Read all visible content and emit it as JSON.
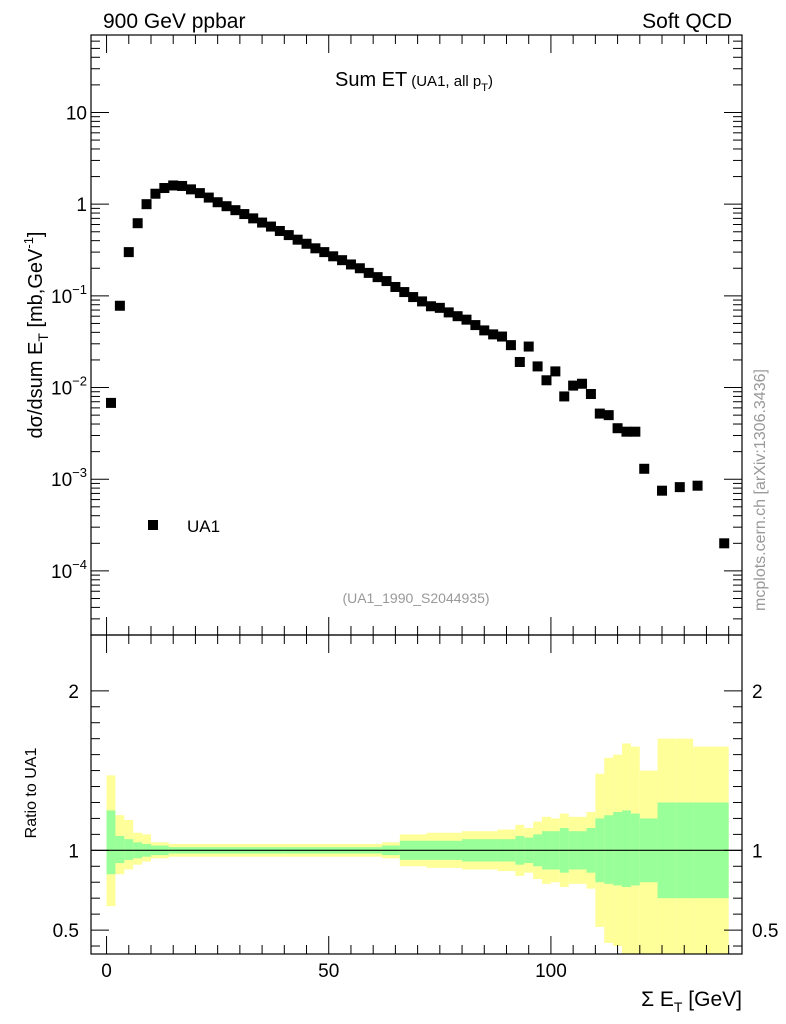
{
  "header": {
    "left": "900 GeV ppbar",
    "right": "Soft QCD",
    "side": "mcplots.cern.ch [arXiv:1306.3436]"
  },
  "chart_data": [
    {
      "type": "scatter",
      "title": "Sum ET",
      "title_sub": "(UA1, all p",
      "title_sub_sub": "T",
      "title_sub_close": ")",
      "reference": "(UA1_1990_S2044935)",
      "ylabel": {
        "prefix": "dσ/dsum E",
        "prefix_sub": "T",
        "mid": " [mb,GeV",
        "sup": "-1",
        "close": "]"
      },
      "yscale": "log",
      "xlim": [
        -3.5,
        143
      ],
      "ylim": [
        2e-05,
        70
      ],
      "yticks": [
        {
          "value": 10,
          "base": "10",
          "exp": ""
        },
        {
          "value": 1,
          "base": "1",
          "exp": ""
        },
        {
          "value": 0.1,
          "base": "10",
          "exp": "−1"
        },
        {
          "value": 0.01,
          "base": "10",
          "exp": "−2"
        },
        {
          "value": 0.001,
          "base": "10",
          "exp": "−3"
        },
        {
          "value": 0.0001,
          "base": "10",
          "exp": "−4"
        }
      ],
      "legend": {
        "label": "UA1",
        "placement": "bottom-left"
      },
      "series": [
        {
          "name": "UA1",
          "color": "#000000",
          "x": [
            1,
            3,
            5,
            7,
            9,
            11,
            13,
            15,
            17,
            19,
            21,
            23,
            25,
            27,
            29,
            31,
            33,
            35,
            37,
            39,
            41,
            43,
            45,
            47,
            49,
            51,
            53,
            55,
            57,
            59,
            61,
            63,
            65,
            67,
            69,
            71,
            73,
            75,
            77,
            79,
            81,
            83,
            85,
            87,
            89,
            91,
            93,
            95,
            97,
            99,
            101,
            103,
            105,
            107,
            109,
            111,
            113,
            115,
            117,
            119,
            121,
            125,
            129,
            133,
            139
          ],
          "y": [
            0.0068,
            0.078,
            0.3,
            0.62,
            1.0,
            1.3,
            1.5,
            1.6,
            1.58,
            1.45,
            1.32,
            1.18,
            1.05,
            0.95,
            0.86,
            0.78,
            0.7,
            0.63,
            0.57,
            0.51,
            0.46,
            0.41,
            0.37,
            0.33,
            0.3,
            0.27,
            0.245,
            0.22,
            0.2,
            0.178,
            0.16,
            0.145,
            0.125,
            0.11,
            0.097,
            0.087,
            0.077,
            0.074,
            0.066,
            0.06,
            0.055,
            0.048,
            0.042,
            0.038,
            0.036,
            0.029,
            0.019,
            0.028,
            0.017,
            0.012,
            0.015,
            0.008,
            0.0105,
            0.011,
            0.0085,
            0.0052,
            0.005,
            0.0036,
            0.0033,
            0.0033,
            0.0013,
            0.00075,
            0.00082,
            0.00085,
            0.0002
          ],
          "marker": "square"
        }
      ]
    },
    {
      "type": "area",
      "ylabel": "Ratio to UA1",
      "xlabel": {
        "prefix": "Σ E",
        "sub": "T",
        "suffix": " [GeV]"
      },
      "xlim": [
        -3.5,
        143
      ],
      "ylim": [
        0.35,
        2.35
      ],
      "xticks": [
        0,
        50,
        100
      ],
      "yticks": [
        0.5,
        1,
        2
      ],
      "yticklabels": [
        "0.5",
        "1",
        "2"
      ],
      "reference_line": 1,
      "band_colors": {
        "outer": "#ffff99",
        "inner": "#99ff99"
      },
      "bins": [
        {
          "x": [
            0,
            2
          ],
          "outer": [
            0.65,
            1.47
          ],
          "inner": [
            0.85,
            1.25
          ]
        },
        {
          "x": [
            2,
            4
          ],
          "outer": [
            0.85,
            1.22
          ],
          "inner": [
            0.92,
            1.09
          ]
        },
        {
          "x": [
            4,
            6
          ],
          "outer": [
            0.88,
            1.19
          ],
          "inner": [
            0.94,
            1.07
          ]
        },
        {
          "x": [
            6,
            8
          ],
          "outer": [
            0.91,
            1.11
          ],
          "inner": [
            0.95,
            1.05
          ]
        },
        {
          "x": [
            8,
            10
          ],
          "outer": [
            0.93,
            1.1
          ],
          "inner": [
            0.96,
            1.04
          ]
        },
        {
          "x": [
            10,
            14
          ],
          "outer": [
            0.95,
            1.05
          ],
          "inner": [
            0.97,
            1.03
          ]
        },
        {
          "x": [
            14,
            40
          ],
          "outer": [
            0.96,
            1.04
          ],
          "inner": [
            0.98,
            1.02
          ]
        },
        {
          "x": [
            40,
            62
          ],
          "outer": [
            0.96,
            1.04
          ],
          "inner": [
            0.98,
            1.02
          ]
        },
        {
          "x": [
            62,
            66
          ],
          "outer": [
            0.95,
            1.05
          ],
          "inner": [
            0.97,
            1.03
          ]
        },
        {
          "x": [
            66,
            72
          ],
          "outer": [
            0.9,
            1.1
          ],
          "inner": [
            0.94,
            1.06
          ]
        },
        {
          "x": [
            72,
            80
          ],
          "outer": [
            0.89,
            1.11
          ],
          "inner": [
            0.94,
            1.06
          ]
        },
        {
          "x": [
            80,
            88
          ],
          "outer": [
            0.88,
            1.12
          ],
          "inner": [
            0.93,
            1.07
          ]
        },
        {
          "x": [
            88,
            92
          ],
          "outer": [
            0.87,
            1.13
          ],
          "inner": [
            0.93,
            1.07
          ]
        },
        {
          "x": [
            92,
            94
          ],
          "outer": [
            0.84,
            1.16
          ],
          "inner": [
            0.91,
            1.09
          ]
        },
        {
          "x": [
            94,
            96
          ],
          "outer": [
            0.86,
            1.14
          ],
          "inner": [
            0.92,
            1.08
          ]
        },
        {
          "x": [
            96,
            98
          ],
          "outer": [
            0.82,
            1.18
          ],
          "inner": [
            0.9,
            1.1
          ]
        },
        {
          "x": [
            98,
            100
          ],
          "outer": [
            0.79,
            1.21
          ],
          "inner": [
            0.88,
            1.12
          ]
        },
        {
          "x": [
            100,
            102
          ],
          "outer": [
            0.8,
            1.2
          ],
          "inner": [
            0.88,
            1.12
          ]
        },
        {
          "x": [
            102,
            104
          ],
          "outer": [
            0.77,
            1.23
          ],
          "inner": [
            0.86,
            1.14
          ]
        },
        {
          "x": [
            104,
            106
          ],
          "outer": [
            0.79,
            1.21
          ],
          "inner": [
            0.88,
            1.12
          ]
        },
        {
          "x": [
            106,
            108
          ],
          "outer": [
            0.79,
            1.21
          ],
          "inner": [
            0.88,
            1.12
          ]
        },
        {
          "x": [
            108,
            110
          ],
          "outer": [
            0.76,
            1.24
          ],
          "inner": [
            0.86,
            1.14
          ]
        },
        {
          "x": [
            110,
            112
          ],
          "outer": [
            0.52,
            1.48
          ],
          "inner": [
            0.8,
            1.2
          ]
        },
        {
          "x": [
            112,
            114
          ],
          "outer": [
            0.42,
            1.58
          ],
          "inner": [
            0.79,
            1.22
          ]
        },
        {
          "x": [
            114,
            116
          ],
          "outer": [
            0.4,
            1.6
          ],
          "inner": [
            0.78,
            1.24
          ]
        },
        {
          "x": [
            116,
            118
          ],
          "outer": [
            0.33,
            1.67
          ],
          "inner": [
            0.77,
            1.25
          ]
        },
        {
          "x": [
            118,
            120
          ],
          "outer": [
            0.35,
            1.65
          ],
          "inner": [
            0.78,
            1.23
          ]
        },
        {
          "x": [
            120,
            124
          ],
          "outer": [
            0.35,
            1.5
          ],
          "inner": [
            0.8,
            1.2
          ]
        },
        {
          "x": [
            124,
            128
          ],
          "outer": [
            0.3,
            1.7
          ],
          "inner": [
            0.7,
            1.3
          ]
        },
        {
          "x": [
            128,
            132
          ],
          "outer": [
            0.3,
            1.7
          ],
          "inner": [
            0.7,
            1.3
          ]
        },
        {
          "x": [
            132,
            140
          ],
          "outer": [
            0.35,
            1.65
          ],
          "inner": [
            0.7,
            1.3
          ]
        }
      ]
    }
  ]
}
